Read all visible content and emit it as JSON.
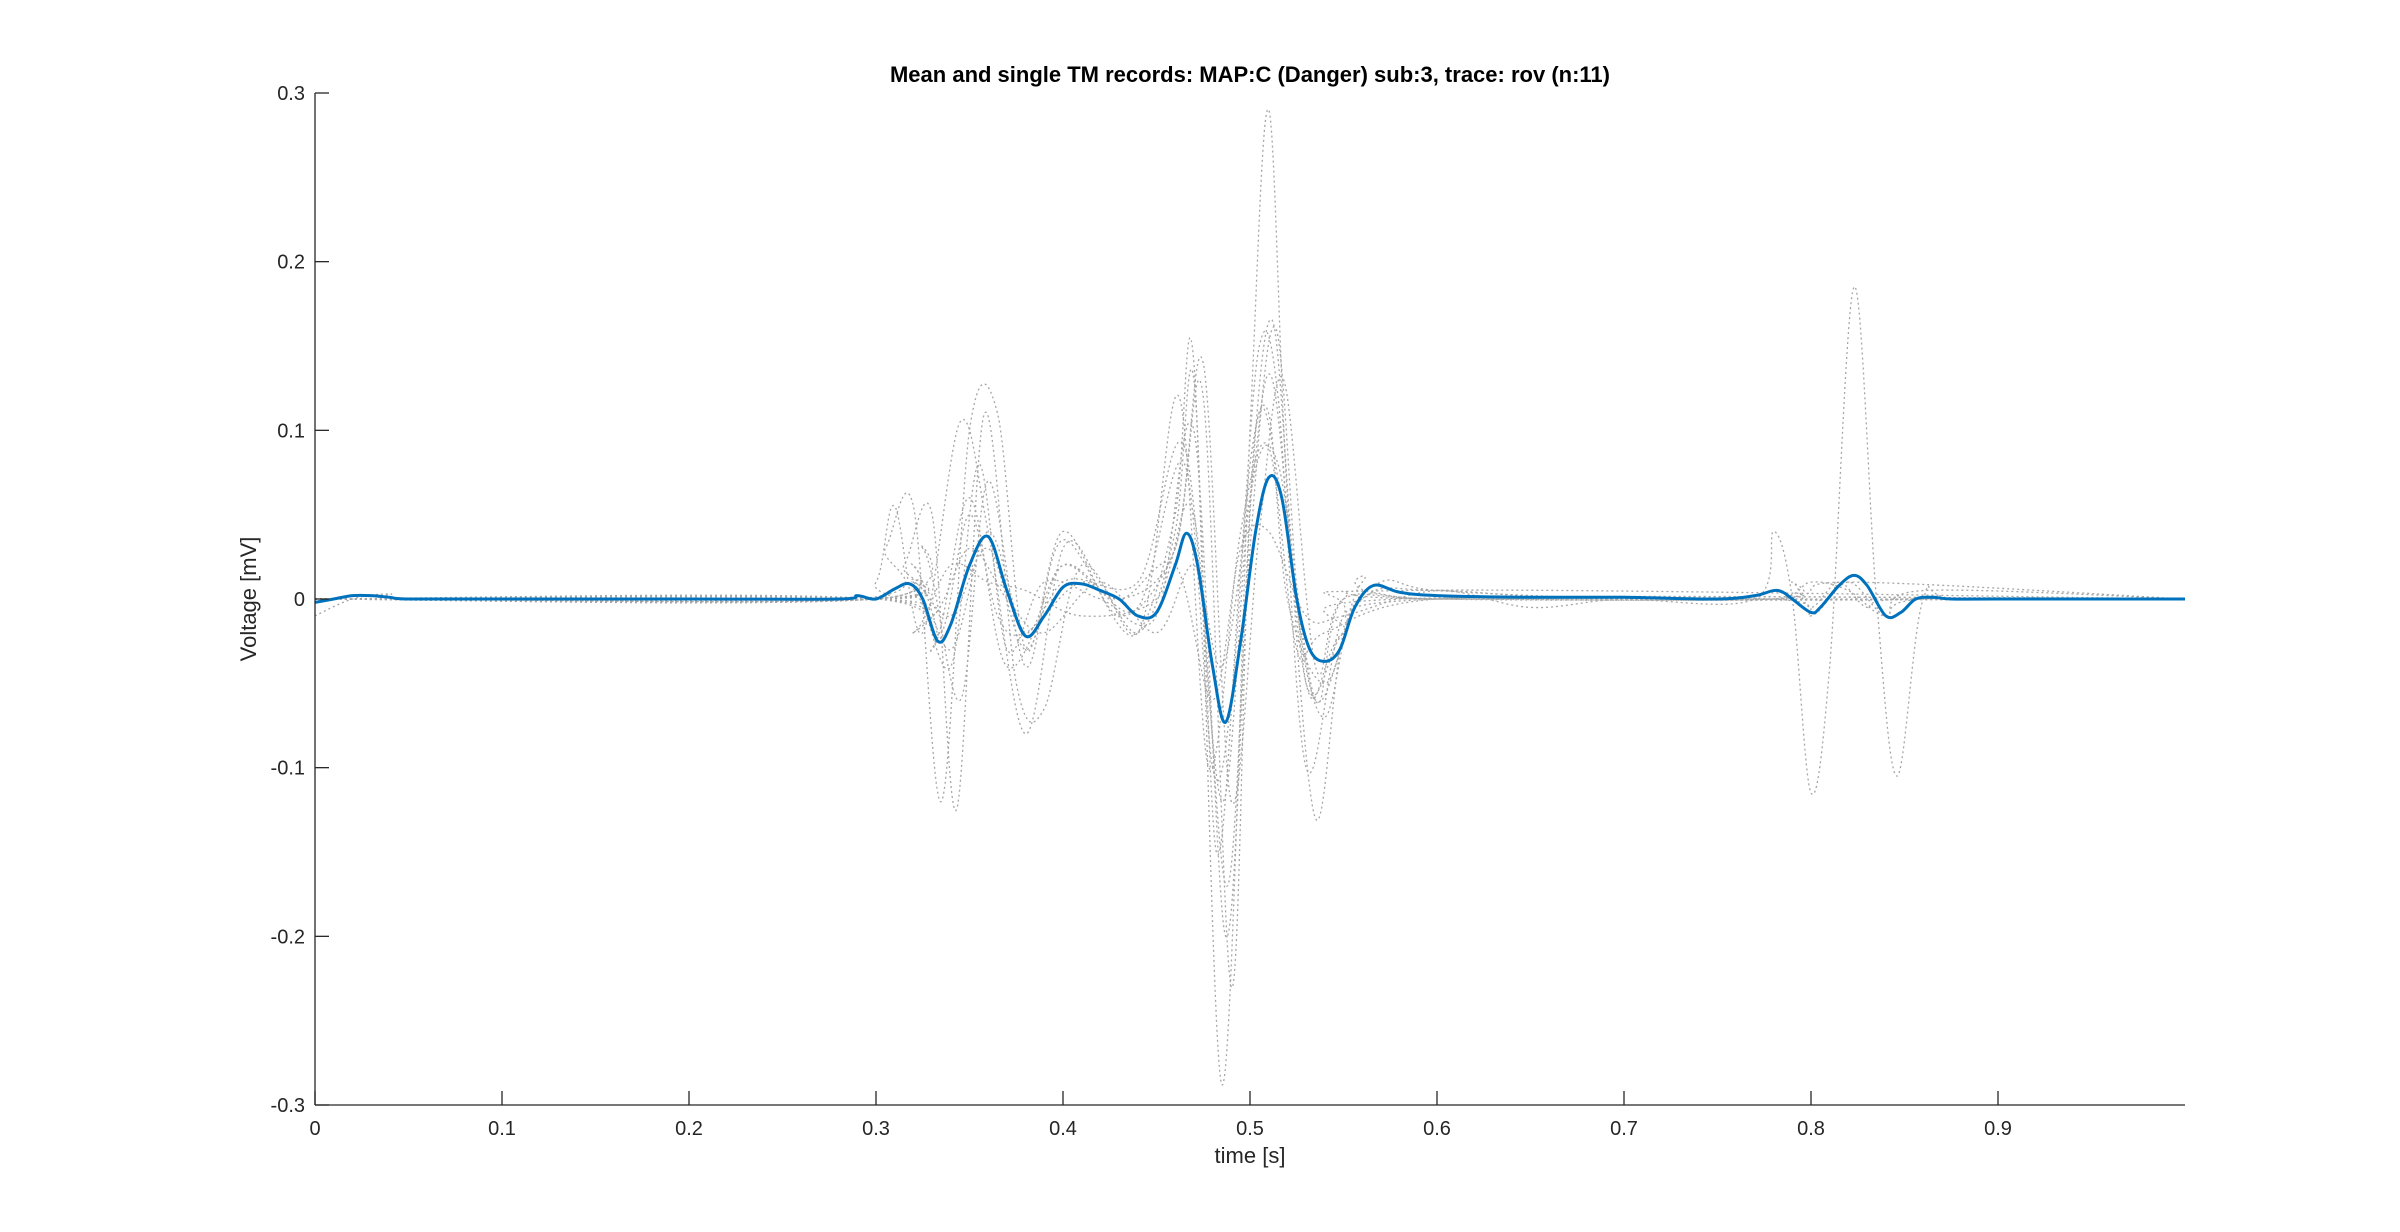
{
  "chart_data": {
    "type": "line",
    "title": "Mean and single TM records: MAP:C (Danger) sub:3, trace: rov (n:11)",
    "xlabel": "time [s]",
    "ylabel": "Voltage [mV]",
    "xlim": [
      0,
      1
    ],
    "ylim": [
      -0.3,
      0.3
    ],
    "xticks": [
      0,
      0.1,
      0.2,
      0.3,
      0.4,
      0.5,
      0.6,
      0.7,
      0.8,
      0.9
    ],
    "yticks": [
      -0.3,
      -0.2,
      -0.1,
      0,
      0.1,
      0.2,
      0.3
    ],
    "xtick_labels": [
      "0",
      "0.1",
      "0.2",
      "0.3",
      "0.4",
      "0.5",
      "0.6",
      "0.7",
      "0.8",
      "0.9"
    ],
    "ytick_labels": [
      "-0.3",
      "-0.2",
      "-0.1",
      "0",
      "0.1",
      "0.2",
      "0.3"
    ],
    "grid": false,
    "legend": "none",
    "colors": {
      "mean": "#0072BD",
      "single": "#A6A6A6",
      "axis": "#262626"
    },
    "series": [
      {
        "style": "solid",
        "role": "mean",
        "x": [
          0,
          0.01,
          0.02,
          0.03,
          0.04,
          0.05,
          0.1,
          0.2,
          0.28,
          0.29,
          0.3,
          0.31,
          0.318,
          0.325,
          0.333,
          0.34,
          0.35,
          0.36,
          0.37,
          0.38,
          0.39,
          0.4,
          0.41,
          0.42,
          0.43,
          0.44,
          0.45,
          0.46,
          0.466,
          0.472,
          0.48,
          0.487,
          0.495,
          0.503,
          0.51,
          0.517,
          0.525,
          0.532,
          0.54,
          0.548,
          0.556,
          0.566,
          0.58,
          0.6,
          0.65,
          0.7,
          0.75,
          0.77,
          0.78,
          0.785,
          0.79,
          0.8,
          0.805,
          0.815,
          0.823,
          0.83,
          0.84,
          0.848,
          0.856,
          0.865,
          0.875,
          0.9,
          1.0
        ],
        "y": [
          -0.002,
          0.0,
          0.002,
          0.002,
          0.001,
          0.0,
          0.0,
          0.0,
          0.0,
          0.002,
          0.0,
          0.006,
          0.009,
          0.0,
          -0.025,
          -0.015,
          0.02,
          0.037,
          0.005,
          -0.022,
          -0.01,
          0.007,
          0.009,
          0.005,
          0.0,
          -0.01,
          -0.008,
          0.02,
          0.039,
          0.02,
          -0.04,
          -0.073,
          -0.025,
          0.04,
          0.072,
          0.06,
          0.0,
          -0.03,
          -0.037,
          -0.03,
          -0.005,
          0.008,
          0.004,
          0.002,
          0.001,
          0.001,
          0.0,
          0.002,
          0.005,
          0.004,
          0.0,
          -0.008,
          -0.005,
          0.008,
          0.014,
          0.008,
          -0.01,
          -0.008,
          0.0,
          0.001,
          0.0,
          0.0,
          0.0
        ]
      },
      {
        "style": "dotted",
        "role": "single",
        "x": [
          0,
          0.28,
          0.3,
          0.31,
          0.325,
          0.345,
          0.36,
          0.38,
          0.4,
          0.42,
          0.44,
          0.46,
          0.47,
          0.485,
          0.5,
          0.51,
          0.52,
          0.535,
          0.55,
          0.57,
          0.6,
          0.7,
          0.77,
          0.78,
          0.79,
          0.8,
          0.81,
          0.823,
          0.835,
          0.846,
          0.86,
          0.88,
          1.0
        ],
        "y": [
          0.0,
          0.0,
          0.01,
          0.055,
          -0.02,
          0.105,
          0.04,
          -0.08,
          0.03,
          0.01,
          -0.02,
          0.05,
          0.14,
          -0.288,
          0.1,
          0.29,
          0.06,
          -0.13,
          -0.02,
          0.01,
          0.005,
          0.0,
          0.0,
          0.04,
          0.0,
          -0.115,
          -0.04,
          0.185,
          0.0,
          -0.105,
          0.0,
          0.0,
          0.0
        ]
      },
      {
        "style": "dotted",
        "role": "single",
        "x": [
          0,
          0.29,
          0.305,
          0.32,
          0.335,
          0.35,
          0.365,
          0.38,
          0.4,
          0.43,
          0.46,
          0.475,
          0.49,
          0.5,
          0.512,
          0.525,
          0.54,
          0.56,
          0.6,
          1.0
        ],
        "y": [
          0.0,
          0.0,
          0.03,
          0.055,
          -0.12,
          0.1,
          0.11,
          -0.03,
          0.04,
          -0.01,
          0.03,
          0.12,
          -0.23,
          0.05,
          0.165,
          0.0,
          -0.07,
          0.01,
          0.0,
          0.0
        ]
      },
      {
        "style": "dotted",
        "role": "single",
        "x": [
          0,
          0.3,
          0.315,
          0.33,
          0.343,
          0.358,
          0.375,
          0.39,
          0.41,
          0.44,
          0.46,
          0.47,
          0.482,
          0.495,
          0.505,
          0.515,
          0.53,
          0.55,
          0.58,
          1.0
        ],
        "y": [
          0.0,
          0.0,
          0.02,
          0.05,
          -0.125,
          0.11,
          -0.05,
          -0.065,
          0.02,
          -0.02,
          0.04,
          0.13,
          -0.15,
          0.02,
          0.15,
          0.12,
          -0.1,
          -0.01,
          0.005,
          0.0
        ]
      },
      {
        "style": "dotted",
        "role": "single",
        "x": [
          0,
          0.3,
          0.32,
          0.34,
          0.355,
          0.37,
          0.39,
          0.42,
          0.45,
          0.47,
          0.487,
          0.5,
          0.514,
          0.53,
          0.55,
          0.6,
          1.0
        ],
        "y": [
          0.0,
          0.0,
          0.01,
          -0.04,
          0.08,
          -0.03,
          0.01,
          0.0,
          -0.01,
          0.1,
          -0.2,
          0.03,
          0.16,
          -0.05,
          -0.02,
          0.0,
          0.0
        ]
      },
      {
        "style": "dotted",
        "role": "single",
        "x": [
          0,
          0.3,
          0.32,
          0.335,
          0.35,
          0.365,
          0.38,
          0.41,
          0.44,
          0.465,
          0.48,
          0.49,
          0.5,
          0.51,
          0.52,
          0.54,
          0.56,
          0.6,
          0.78,
          0.8,
          0.82,
          0.84,
          0.86,
          1.0
        ],
        "y": [
          0.0,
          0.0,
          0.005,
          -0.02,
          0.05,
          -0.01,
          -0.02,
          0.01,
          -0.005,
          0.08,
          -0.1,
          -0.06,
          0.08,
          0.11,
          0.0,
          -0.05,
          0.0,
          0.0,
          0.0,
          -0.01,
          0.01,
          -0.01,
          0.0,
          0.0
        ]
      },
      {
        "style": "dotted",
        "role": "single",
        "x": [
          0,
          0.02,
          0.04,
          0.06,
          0.3,
          0.32,
          0.34,
          0.36,
          0.38,
          0.4,
          0.43,
          0.46,
          0.475,
          0.49,
          0.505,
          0.518,
          0.535,
          0.55,
          0.6,
          0.78,
          0.82,
          1.0
        ],
        "y": [
          -0.01,
          0.0,
          0.003,
          0.0,
          0.0,
          0.02,
          -0.03,
          0.04,
          -0.02,
          0.02,
          0.0,
          0.03,
          0.14,
          -0.12,
          0.04,
          0.13,
          -0.04,
          0.0,
          0.0,
          0.0,
          0.01,
          0.0
        ]
      },
      {
        "style": "dotted",
        "role": "single",
        "x": [
          0,
          0.3,
          0.33,
          0.35,
          0.37,
          0.39,
          0.42,
          0.45,
          0.47,
          0.485,
          0.5,
          0.512,
          0.53,
          0.55,
          0.58,
          1.0
        ],
        "y": [
          0.0,
          0.0,
          -0.01,
          0.03,
          0.0,
          -0.02,
          0.01,
          -0.02,
          0.02,
          -0.04,
          0.06,
          0.13,
          -0.05,
          -0.02,
          0.0,
          0.0
        ]
      },
      {
        "style": "dotted",
        "role": "single",
        "x": [
          0,
          0.3,
          0.325,
          0.345,
          0.36,
          0.38,
          0.4,
          0.44,
          0.462,
          0.478,
          0.495,
          0.51,
          0.525,
          0.54,
          0.6,
          0.78,
          0.79,
          0.8,
          0.815,
          0.83,
          0.85,
          1.0
        ],
        "y": [
          0.0,
          0.0,
          0.03,
          -0.06,
          0.07,
          -0.04,
          0.035,
          -0.02,
          0.12,
          -0.1,
          0.04,
          0.09,
          -0.03,
          -0.02,
          0.0,
          0.0,
          0.01,
          -0.005,
          0.01,
          -0.005,
          0.0,
          0.0
        ]
      },
      {
        "style": "dotted",
        "role": "single",
        "x": [
          0,
          0.3,
          0.32,
          0.34,
          0.36,
          0.38,
          0.41,
          0.45,
          0.47,
          0.488,
          0.503,
          0.517,
          0.535,
          0.56,
          0.6,
          0.7,
          1.0
        ],
        "y": [
          0.0,
          0.0,
          -0.02,
          0.02,
          0.01,
          0.005,
          -0.01,
          0.0,
          0.05,
          -0.17,
          0.1,
          0.06,
          -0.06,
          0.0,
          0.005,
          0.0,
          0.0
        ]
      },
      {
        "style": "dotted",
        "role": "single",
        "x": [
          0,
          0.3,
          0.32,
          0.34,
          0.36,
          0.38,
          0.4,
          0.43,
          0.46,
          0.48,
          0.495,
          0.51,
          0.53,
          0.55,
          0.6,
          0.65,
          0.7,
          0.78,
          0.8,
          0.82,
          0.84,
          0.86,
          1.0
        ],
        "y": [
          0.0,
          0.0,
          0.01,
          -0.01,
          0.03,
          -0.03,
          0.02,
          0.0,
          0.02,
          -0.06,
          0.03,
          0.04,
          -0.01,
          -0.01,
          0.005,
          -0.005,
          0.0,
          0.0,
          0.01,
          0.005,
          -0.01,
          0.005,
          0.0
        ]
      },
      {
        "style": "dotted",
        "role": "single",
        "x": [
          0,
          0.3,
          0.33,
          0.35,
          0.37,
          0.4,
          0.44,
          0.465,
          0.485,
          0.5,
          0.515,
          0.535,
          0.55,
          0.6,
          1.0
        ],
        "y": [
          0.0,
          0.0,
          -0.03,
          0.06,
          -0.04,
          0.01,
          0.01,
          0.09,
          -0.12,
          0.06,
          0.08,
          -0.06,
          0.0,
          0.0,
          0.0
        ]
      }
    ]
  }
}
